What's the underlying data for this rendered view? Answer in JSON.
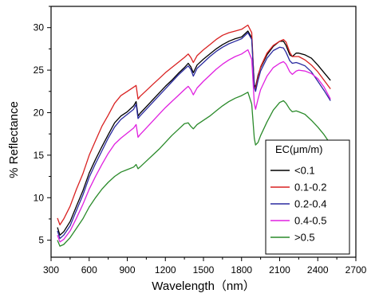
{
  "chart_data": {
    "type": "line",
    "xlabel": "Wavelength（nm）",
    "ylabel": "% Reflectance",
    "xlim": [
      300,
      2700
    ],
    "ylim": [
      3,
      32.5
    ],
    "xticks": [
      300,
      600,
      900,
      1200,
      1500,
      1800,
      2100,
      2400,
      2700
    ],
    "yticks": [
      5,
      10,
      15,
      20,
      25,
      30
    ],
    "legend": {
      "title": "EC(μm/m)",
      "position": "right"
    },
    "x": [
      350,
      370,
      400,
      450,
      500,
      550,
      600,
      650,
      700,
      750,
      800,
      850,
      900,
      950,
      970,
      985,
      1000,
      1050,
      1100,
      1150,
      1200,
      1250,
      1300,
      1350,
      1380,
      1400,
      1420,
      1450,
      1500,
      1550,
      1600,
      1650,
      1700,
      1750,
      1800,
      1850,
      1880,
      1900,
      1910,
      1930,
      1950,
      2000,
      2050,
      2100,
      2130,
      2150,
      2180,
      2200,
      2230,
      2250,
      2300,
      2350,
      2400,
      2450,
      2500
    ],
    "series": [
      {
        "name": "<0.1",
        "color": "#000000",
        "values": [
          6.5,
          5.6,
          6.0,
          7.2,
          9.0,
          10.8,
          12.9,
          14.5,
          16.0,
          17.4,
          18.8,
          19.6,
          20.1,
          20.8,
          21.3,
          19.6,
          19.9,
          20.7,
          21.5,
          22.3,
          23.1,
          23.8,
          24.6,
          25.3,
          25.8,
          25.4,
          24.7,
          25.6,
          26.3,
          26.9,
          27.5,
          28.0,
          28.4,
          28.7,
          28.9,
          29.6,
          28.8,
          23.3,
          23.0,
          24.4,
          25.3,
          26.8,
          27.8,
          28.4,
          28.4,
          27.9,
          26.8,
          26.6,
          27.0,
          27.0,
          26.8,
          26.4,
          25.6,
          24.7,
          23.8
        ]
      },
      {
        "name": "0.1-0.2",
        "color": "#d92121",
        "values": [
          7.6,
          6.8,
          7.5,
          9.0,
          11.0,
          12.8,
          15.0,
          16.7,
          18.4,
          19.7,
          21.1,
          22.0,
          22.5,
          23.0,
          23.2,
          21.6,
          21.9,
          22.6,
          23.3,
          24.0,
          24.7,
          25.3,
          25.9,
          26.5,
          26.9,
          26.5,
          25.9,
          26.7,
          27.4,
          28.0,
          28.6,
          29.1,
          29.4,
          29.6,
          29.8,
          30.3,
          29.4,
          23.1,
          22.8,
          24.2,
          25.4,
          27.0,
          27.9,
          28.4,
          28.6,
          28.3,
          27.1,
          26.6,
          26.6,
          26.6,
          26.2,
          25.6,
          24.8,
          23.8,
          22.8
        ]
      },
      {
        "name": "0.2-0.4",
        "color": "#2a2aa0",
        "values": [
          6.1,
          5.2,
          5.6,
          6.7,
          8.5,
          10.3,
          12.4,
          14.0,
          15.5,
          17.0,
          18.3,
          19.2,
          19.8,
          20.4,
          21.0,
          19.3,
          19.6,
          20.4,
          21.2,
          22.0,
          22.8,
          23.6,
          24.4,
          25.1,
          25.5,
          25.1,
          24.3,
          25.2,
          25.9,
          26.6,
          27.2,
          27.7,
          28.1,
          28.4,
          28.7,
          29.4,
          28.6,
          23.0,
          22.5,
          23.8,
          24.9,
          26.4,
          27.3,
          27.7,
          27.6,
          27.1,
          26.1,
          25.8,
          25.9,
          25.8,
          25.5,
          24.8,
          23.7,
          22.6,
          21.4
        ]
      },
      {
        "name": "0.4-0.5",
        "color": "#e020e0",
        "values": [
          5.6,
          4.8,
          5.1,
          6.1,
          7.6,
          9.2,
          11.0,
          12.5,
          13.9,
          15.2,
          16.3,
          17.0,
          17.6,
          18.2,
          18.6,
          17.1,
          17.4,
          18.2,
          19.0,
          19.8,
          20.6,
          21.3,
          22.0,
          22.7,
          23.1,
          22.7,
          22.1,
          22.9,
          23.7,
          24.4,
          25.1,
          25.7,
          26.2,
          26.6,
          26.9,
          27.4,
          26.3,
          21.1,
          20.4,
          21.6,
          22.7,
          24.3,
          25.3,
          25.8,
          26.0,
          25.7,
          24.8,
          24.5,
          24.9,
          25.0,
          24.9,
          24.6,
          24.0,
          23.0,
          21.6
        ]
      },
      {
        "name": ">0.5",
        "color": "#2a8a2a",
        "values": [
          5.0,
          4.3,
          4.5,
          5.3,
          6.4,
          7.5,
          8.9,
          10.0,
          11.0,
          11.8,
          12.5,
          13.0,
          13.3,
          13.6,
          13.9,
          13.4,
          13.6,
          14.3,
          15.0,
          15.7,
          16.5,
          17.3,
          18.0,
          18.7,
          18.8,
          18.4,
          18.1,
          18.6,
          19.1,
          19.6,
          20.2,
          20.8,
          21.3,
          21.7,
          22.0,
          22.4,
          21.0,
          17.0,
          16.2,
          16.5,
          17.3,
          18.9,
          20.3,
          21.2,
          21.4,
          21.1,
          20.4,
          20.1,
          20.2,
          20.1,
          19.8,
          19.1,
          18.3,
          17.4,
          16.3
        ]
      }
    ]
  }
}
